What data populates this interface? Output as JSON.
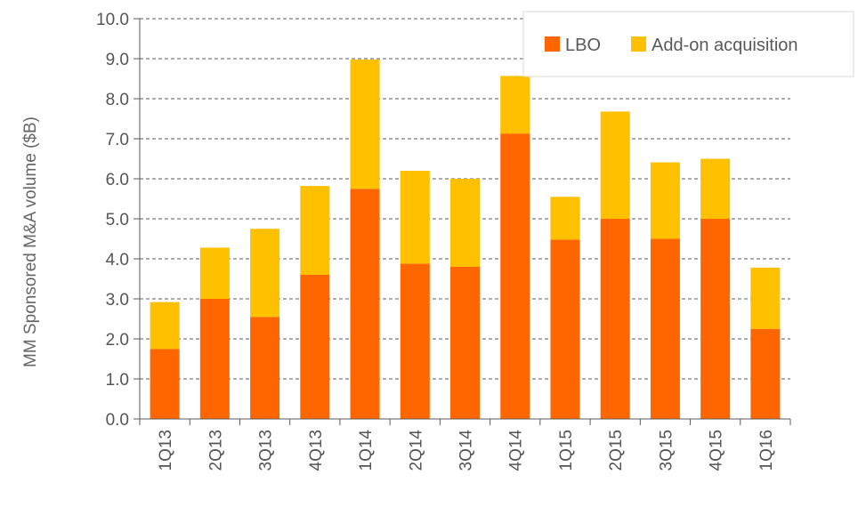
{
  "chart_data": {
    "type": "bar",
    "stacked": true,
    "categories": [
      "1Q13",
      "2Q13",
      "3Q13",
      "4Q13",
      "1Q14",
      "2Q14",
      "3Q14",
      "4Q14",
      "1Q15",
      "2Q15",
      "3Q15",
      "4Q15",
      "1Q16"
    ],
    "series": [
      {
        "name": "LBO",
        "color": "#FF6600",
        "values": [
          1.75,
          3.0,
          2.55,
          3.6,
          5.75,
          3.88,
          3.8,
          7.13,
          4.48,
          5.0,
          4.5,
          5.0,
          2.25
        ]
      },
      {
        "name": "Add-on acquisition",
        "color": "#FFC000",
        "values": [
          1.17,
          1.28,
          2.2,
          2.22,
          3.23,
          2.32,
          2.2,
          1.44,
          1.07,
          2.68,
          1.91,
          1.5,
          1.53
        ]
      }
    ],
    "yticks": [
      "0.0",
      "1.0",
      "2.0",
      "3.0",
      "4.0",
      "5.0",
      "6.0",
      "7.0",
      "8.0",
      "9.0",
      "10.0"
    ],
    "ylim": [
      0,
      10
    ],
    "ylabel": "MM Sponsored M&A volume ($B)",
    "xlabel": "",
    "grid": "dashed horizontal",
    "legend_position": "top-right"
  }
}
